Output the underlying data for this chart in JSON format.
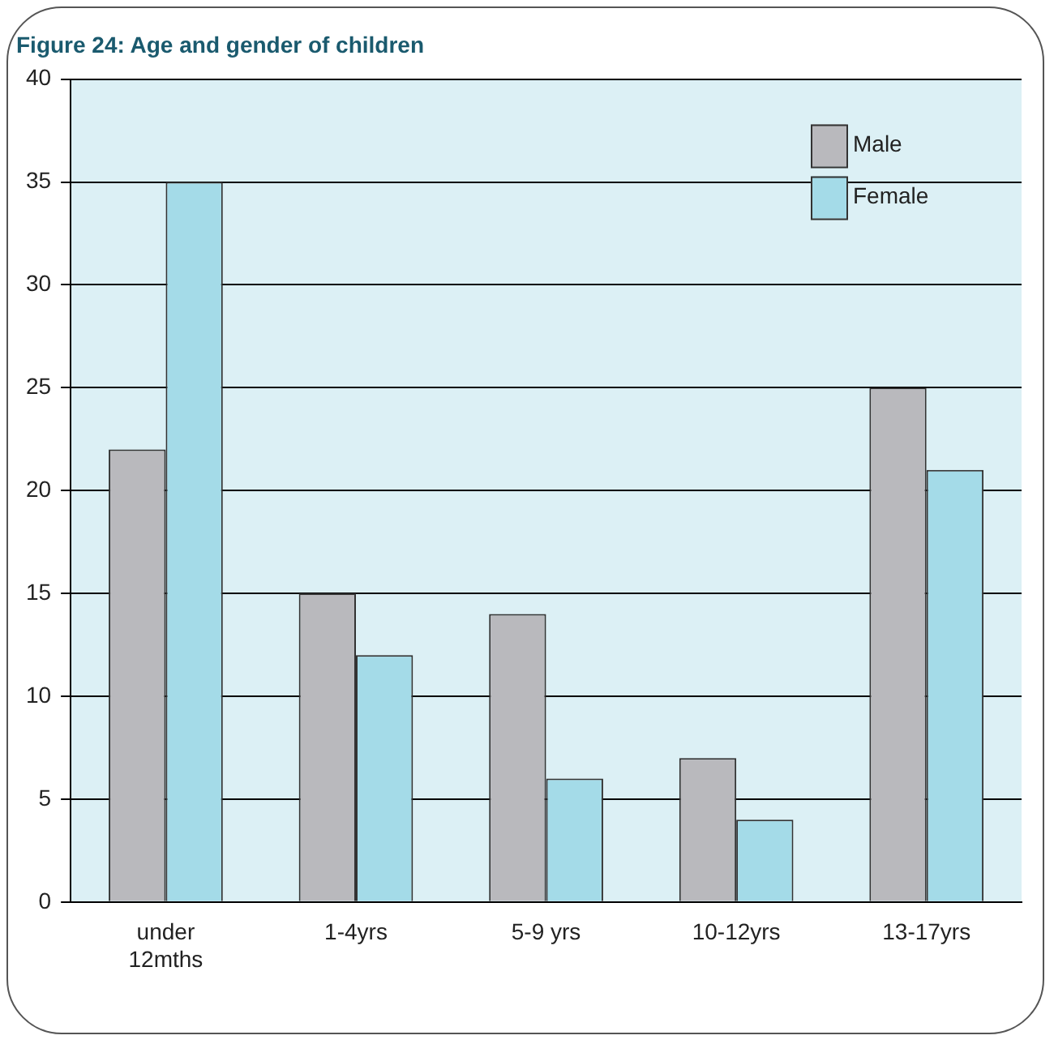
{
  "chart_data": {
    "type": "bar",
    "title": "Figure 24: Age and gender of children",
    "categories": [
      "under 12mths",
      "1-4yrs",
      "5-9 yrs",
      "10-12yrs",
      "13-17yrs"
    ],
    "series": [
      {
        "name": "Male",
        "color": "#b9b9bd",
        "values": [
          22,
          15,
          14,
          7,
          25
        ]
      },
      {
        "name": "Female",
        "color": "#a4dbe8",
        "values": [
          35,
          12,
          6,
          4,
          21
        ]
      }
    ],
    "ylim": [
      0,
      40
    ],
    "yticks": [
      0,
      5,
      10,
      15,
      20,
      25,
      30,
      35,
      40
    ],
    "grid": "y",
    "legend": "top right"
  }
}
